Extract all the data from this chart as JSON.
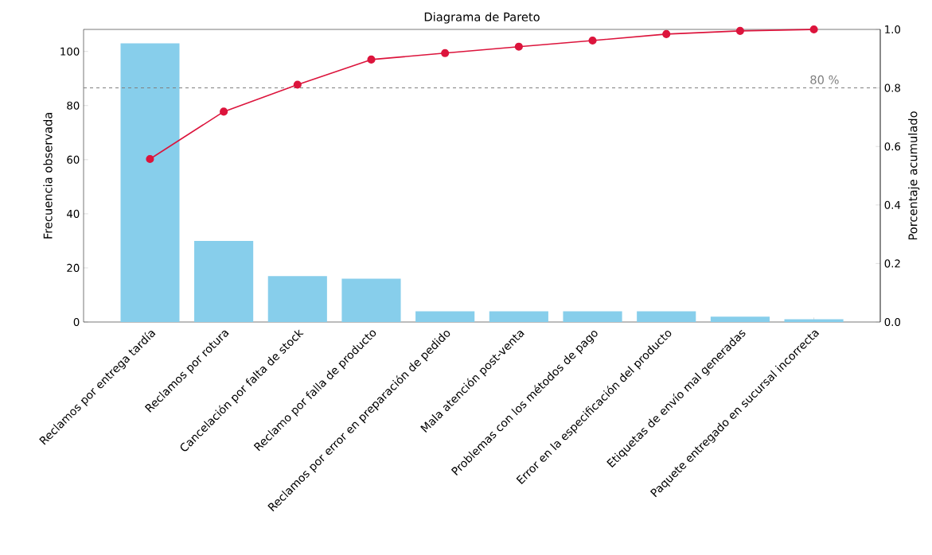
{
  "chart_data": {
    "type": "bar",
    "title": "Diagrama de Pareto",
    "ylabel": "Frecuencia observada",
    "y2label": "Porcentaje acumulado",
    "categories": [
      "Reclamos por entrega tardía",
      "Reclamos por rotura",
      "Cancelación por falta de stock",
      "Reclamo por falla de producto",
      "Reclamos por error en preparación de pedido",
      "Mala atención post-venta",
      "Problemas con los métodos de pago",
      "Error en la especificación del producto",
      "Etiquetas de envío mal generadas",
      "Paquete entregado en sucursal incorrecta"
    ],
    "series": [
      {
        "color": "#87ceeb",
        "values": [
          103,
          30,
          17,
          16,
          4,
          4,
          4,
          4,
          2,
          1
        ]
      },
      {
        "type": "line",
        "axis": "y2",
        "color": "#dc143c",
        "marker": "circle",
        "values": [
          0.557,
          0.719,
          0.811,
          0.897,
          0.919,
          0.941,
          0.962,
          0.984,
          0.995,
          1.0
        ]
      }
    ],
    "ylim": [
      0,
      108.15
    ],
    "yticks": [
      0,
      20,
      40,
      60,
      80,
      100
    ],
    "y2lim": [
      0,
      1.0
    ],
    "y2ticks": [
      {
        "value": 0,
        "label": "0.0"
      },
      {
        "value": 0.2,
        "label": "0.2"
      },
      {
        "value": 0.4,
        "label": "0.4"
      },
      {
        "value": 0.6,
        "label": "0.6"
      },
      {
        "value": 0.8,
        "label": "0.8"
      },
      {
        "value": 1.0,
        "label": "1.0"
      }
    ],
    "ref_lines": [
      {
        "axis": "y2",
        "value": 0.8,
        "label": "80 %",
        "color": "#808080",
        "line_style": "dashed"
      }
    ]
  }
}
